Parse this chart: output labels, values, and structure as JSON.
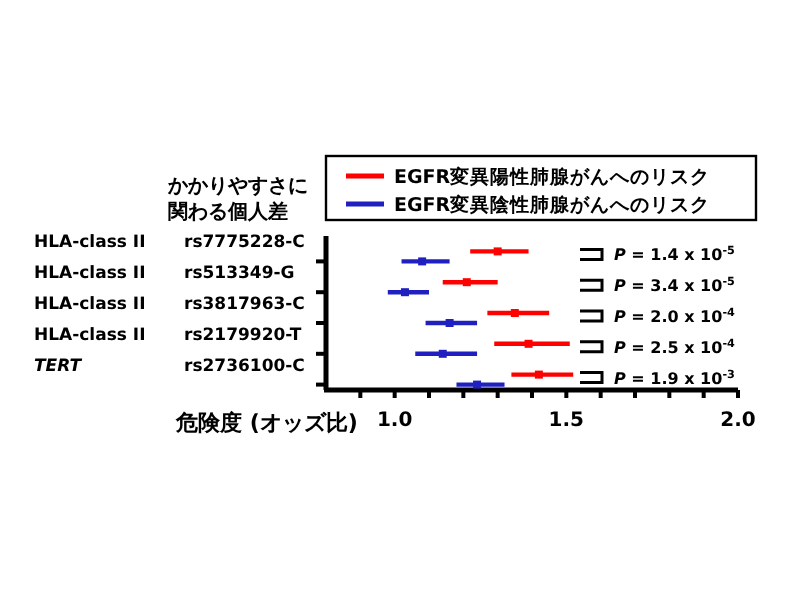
{
  "chart_data": {
    "type": "scatter",
    "orientation": "horizontal",
    "ylabel": "かかりやすさに関わる個人差",
    "xlabel": "危険度 (オッズ比)",
    "categories": [
      "rs7775228-C",
      "rs513349-G",
      "rs3817963-C",
      "rs2179920-T",
      "rs2736100-C"
    ],
    "y2_categories": [
      "HLA-class II",
      "HLA-class II",
      "HLA-class II",
      "HLA-class II",
      "*TERT*"
    ],
    "series": [
      {
        "name": "EGFR変異陽性肺腺がんへのリスク",
        "color": "#ff0000",
        "values": [
          1.3,
          1.21,
          1.35,
          1.39,
          1.42
        ],
        "errors": [
          [
            1.22,
            1.39
          ],
          [
            1.14,
            1.3
          ],
          [
            1.27,
            1.45
          ],
          [
            1.29,
            1.51
          ],
          [
            1.34,
            1.52
          ]
        ]
      },
      {
        "name": "EGFR変異陰性肺腺がんへのリスク",
        "color": "#2020c0",
        "values": [
          1.08,
          1.03,
          1.16,
          1.14,
          1.24
        ],
        "errors": [
          [
            1.02,
            1.16
          ],
          [
            0.98,
            1.1
          ],
          [
            1.09,
            1.24
          ],
          [
            1.06,
            1.24
          ],
          [
            1.18,
            1.32
          ]
        ]
      }
    ],
    "xlim": [
      0.8,
      2.0
    ],
    "xticks": [
      {
        "value": 0.9,
        "label": null
      },
      {
        "value": 1.0,
        "label": "1.0"
      },
      {
        "value": 1.1,
        "label": null
      },
      {
        "value": 1.2,
        "label": null
      },
      {
        "value": 1.3,
        "label": null
      },
      {
        "value": 1.4,
        "label": null
      },
      1.5,
      {
        "value": 1.6,
        "label": null
      },
      {
        "value": 1.7,
        "label": null
      },
      {
        "value": 1.8,
        "label": null
      },
      {
        "value": 1.9,
        "label": null
      },
      {
        "value": 2.0,
        "label": "2.0"
      }
    ],
    "marker": "square",
    "legend": "top",
    "annotations": [
      "*P* = 1.4 x 10$^{-5}$",
      "*P* = 3.4 x 10$^{-5}$",
      "*P* = 2.0 x 10$^{-4}$",
      "*P* = 2.5 x 10$^{-4}$",
      "*P* = 1.9 x 10$^{-3}$"
    ]
  }
}
